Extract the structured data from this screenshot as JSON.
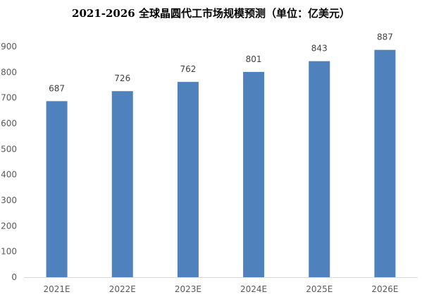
{
  "chart_data": {
    "type": "bar",
    "title": "2021-2026 全球晶圆代工市场规模预测（单位：亿美元）",
    "categories": [
      "2021E",
      "2022E",
      "2023E",
      "2024E",
      "2025E",
      "2026E"
    ],
    "values": [
      687,
      726,
      762,
      801,
      843,
      887
    ],
    "data_labels": [
      "687",
      "726",
      "762",
      "801",
      "843",
      "887"
    ],
    "ylim": [
      0,
      900
    ],
    "yticks": [
      0,
      100,
      200,
      300,
      400,
      500,
      600,
      700,
      800,
      900
    ],
    "ytick_labels": [
      "0",
      "100",
      "200",
      "300",
      "400",
      "500",
      "600",
      "700",
      "800",
      "900"
    ],
    "xlabel": "",
    "ylabel": "",
    "grid": false,
    "legend": "none",
    "bar_color": "#4f81bd",
    "axis_color": "#d9d9d9"
  }
}
